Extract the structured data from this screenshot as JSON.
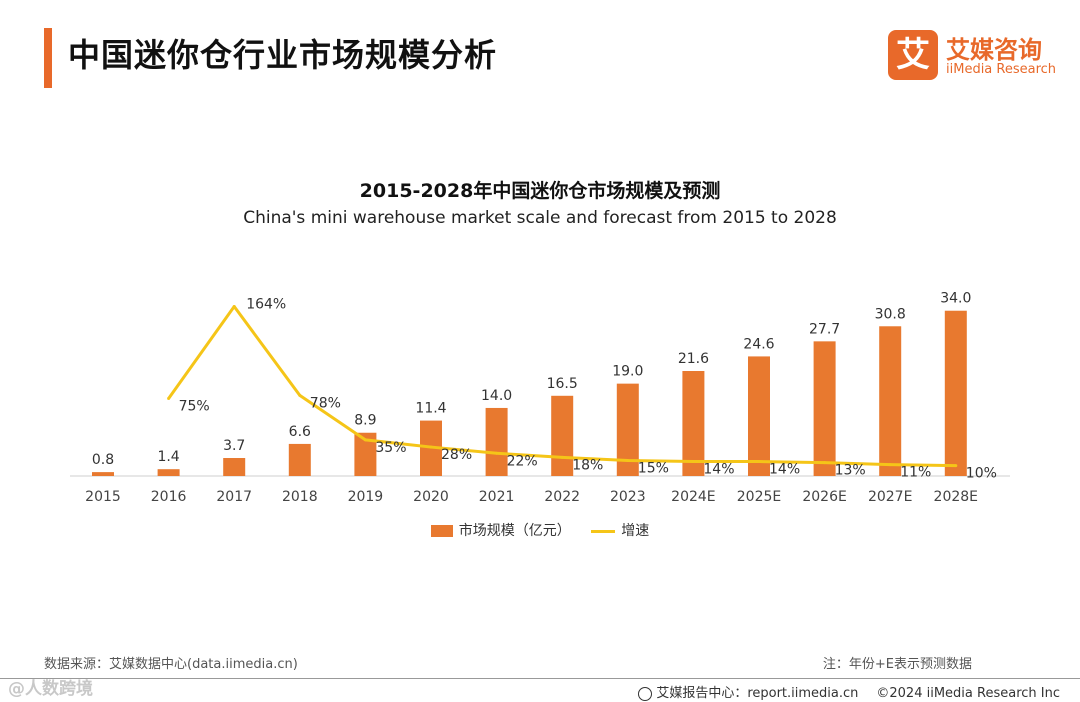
{
  "header": {
    "title": "中国迷你仓行业市场规模分析",
    "logo_mark": "艾",
    "logo_cn": "艾媒咨询",
    "logo_en": "iiMedia Research"
  },
  "chart_data": {
    "type": "bar",
    "title": "2015-2028年中国迷你仓市场规模及预测",
    "subtitle": "China's mini warehouse market scale and forecast from 2015 to 2028",
    "categories": [
      "2015",
      "2016",
      "2017",
      "2018",
      "2019",
      "2020",
      "2021",
      "2022",
      "2023",
      "2024E",
      "2025E",
      "2026E",
      "2027E",
      "2028E"
    ],
    "series": [
      {
        "name": "市场规模（亿元）",
        "type": "bar",
        "color": "#E8792F",
        "values": [
          0.8,
          1.4,
          3.7,
          6.6,
          8.9,
          11.4,
          14.0,
          16.5,
          19.0,
          21.6,
          24.6,
          27.7,
          30.8,
          34.0
        ],
        "labels": [
          "0.8",
          "1.4",
          "3.7",
          "6.6",
          "8.9",
          "11.4",
          "14.0",
          "16.5",
          "19.0",
          "21.6",
          "24.6",
          "27.7",
          "30.8",
          "34.0"
        ]
      },
      {
        "name": "增速",
        "type": "line",
        "color": "#F5C518",
        "values": [
          null,
          75,
          164,
          78,
          35,
          28,
          22,
          18,
          15,
          14,
          14,
          13,
          11,
          10
        ],
        "labels": [
          "",
          "75%",
          "164%",
          "78%",
          "35%",
          "28%",
          "22%",
          "18%",
          "15%",
          "14%",
          "14%",
          "13%",
          "11%",
          "10%"
        ]
      }
    ],
    "ylim_bar": [
      0,
      36
    ],
    "ylim_line": [
      0,
      180
    ]
  },
  "legend": {
    "bar_label": "市场规模（亿元）",
    "line_label": "增速"
  },
  "footer": {
    "source": "数据来源：艾媒数据中心(data.iimedia.cn)",
    "note": "注：年份+E表示预测数据",
    "watermark": "@人数跨境",
    "report": "艾媒报告中心：report.iimedia.cn",
    "copyright": "©2024  iiMedia Research  Inc"
  }
}
